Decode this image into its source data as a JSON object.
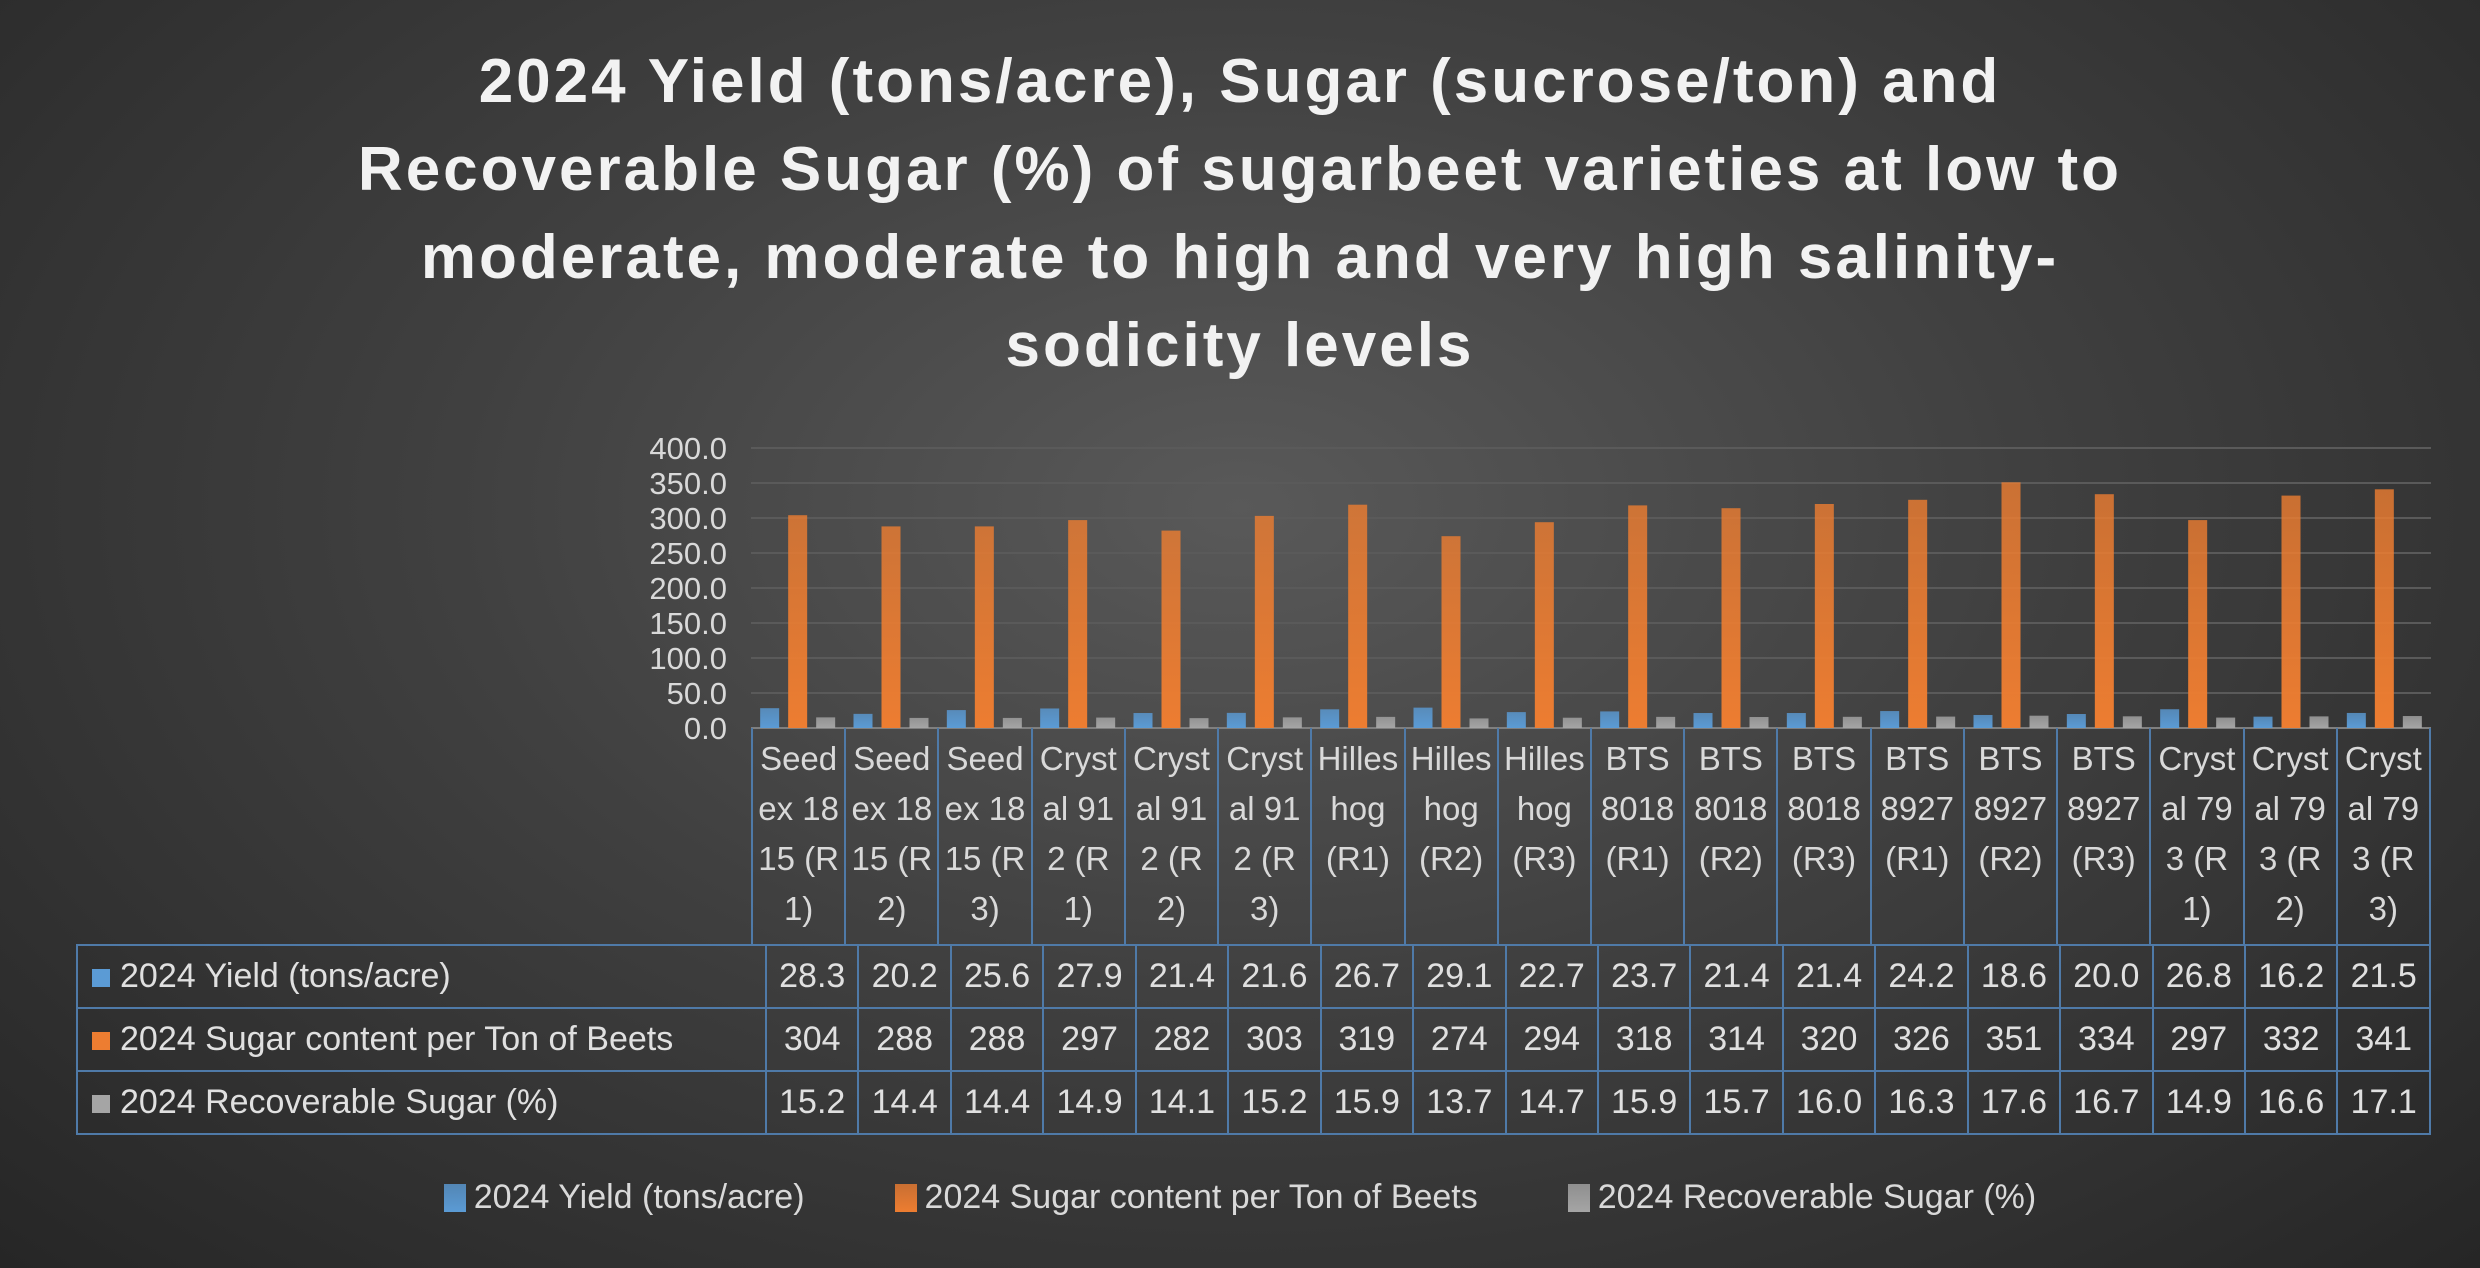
{
  "chart_data": {
    "type": "bar",
    "title": "2024 Yield (tons/acre), Sugar (sucrose/ton) and Recoverable Sugar (%) of sugarbeet varieties at low to moderate, moderate to high and very high salinity-sodicity levels",
    "title_lines": [
      "2024 Yield (tons/acre), Sugar (sucrose/ton) and",
      "Recoverable Sugar (%) of sugarbeet varieties at low to",
      "moderate, moderate to high and very high salinity-",
      "sodicity levels"
    ],
    "categories": [
      "Seedex 1815 (R1)",
      "Seedex 1815 (R2)",
      "Seedex 1815 (R3)",
      "Crystal 912 (R1)",
      "Crystal 912 (R2)",
      "Crystal 912 (R3)",
      "Hilleshog (R1)",
      "Hilleshog (R2)",
      "Hilleshog (R3)",
      "BTS 8018 (R1)",
      "BTS 8018 (R2)",
      "BTS 8018 (R3)",
      "BTS 8927 (R1)",
      "BTS 8927 (R2)",
      "BTS 8927 (R3)",
      "Crystal 793 (R1)",
      "Crystal 793 (R2)",
      "Crystal 793 (R3)"
    ],
    "series": [
      {
        "name": "2024 Yield (tons/acre)",
        "color": "#5b9bd5",
        "values": [
          28.3,
          20.2,
          25.6,
          27.9,
          21.4,
          21.6,
          26.7,
          29.1,
          22.7,
          23.7,
          21.4,
          21.4,
          24.2,
          18.6,
          20.0,
          26.8,
          16.2,
          21.5
        ]
      },
      {
        "name": "2024 Sugar content per Ton of Beets",
        "color": "#ed7d31",
        "values": [
          304,
          288,
          288,
          297,
          282,
          303,
          319,
          274,
          294,
          318,
          314,
          320,
          326,
          351,
          334,
          297,
          332,
          341
        ]
      },
      {
        "name": "2024 Recoverable Sugar (%)",
        "color": "#a5a5a5",
        "values": [
          15.2,
          14.4,
          14.4,
          14.9,
          14.1,
          15.2,
          15.9,
          13.7,
          14.7,
          15.9,
          15.7,
          16.0,
          16.3,
          17.6,
          16.7,
          14.9,
          16.6,
          17.1
        ]
      }
    ],
    "table_values_display": [
      [
        "28.3",
        "20.2",
        "25.6",
        "27.9",
        "21.4",
        "21.6",
        "26.7",
        "29.1",
        "22.7",
        "23.7",
        "21.4",
        "21.4",
        "24.2",
        "18.6",
        "20.0",
        "26.8",
        "16.2",
        "21.5"
      ],
      [
        "304",
        "288",
        "288",
        "297",
        "282",
        "303",
        "319",
        "274",
        "294",
        "318",
        "314",
        "320",
        "326",
        "351",
        "334",
        "297",
        "332",
        "341"
      ],
      [
        "15.2",
        "14.4",
        "14.4",
        "14.9",
        "14.1",
        "15.2",
        "15.9",
        "13.7",
        "14.7",
        "15.9",
        "15.7",
        "16.0",
        "16.3",
        "17.6",
        "16.7",
        "14.9",
        "16.6",
        "17.1"
      ]
    ],
    "ylim": [
      0,
      400
    ],
    "yticks": [
      "0.0",
      "50.0",
      "100.0",
      "150.0",
      "200.0",
      "250.0",
      "300.0",
      "350.0",
      "400.0"
    ],
    "grid": true,
    "legend_placement": "bottom",
    "data_table": true
  }
}
